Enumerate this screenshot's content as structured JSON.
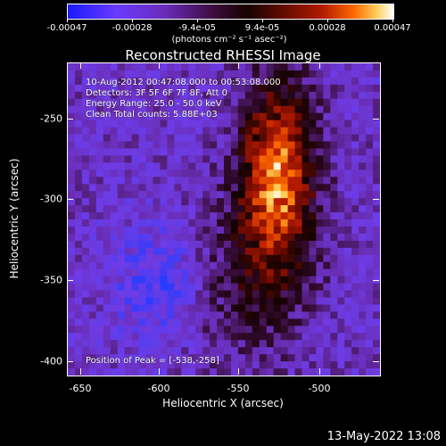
{
  "colorbar": {
    "ticks": [
      "-0.00047",
      "-0.00028",
      "-9.4e-05",
      "9.4e-05",
      "0.00028",
      "0.00047"
    ],
    "unit": "(photons cm⁻² s⁻¹ asec⁻²)"
  },
  "title": "Reconstructed RHESSI Image",
  "info": {
    "time_range": "10-Aug-2012 00:47:08.000 to 00:53:08.000",
    "detectors": "Detectors: 3F 5F 6F 7F 8F, Att 0",
    "energy": "Energy Range: 25.0 - 50.0 keV",
    "algorithm": "Clean     Total counts: 5.88E+03",
    "peak": "Position of Peak = [-538,-258]"
  },
  "axes": {
    "xlabel": "Heliocentric X (arcsec)",
    "ylabel": "Heliocentric Y (arcsec)",
    "xticks": [
      "-650",
      "-600",
      "-550",
      "-500"
    ],
    "yticks": [
      "-250",
      "-300",
      "-350",
      "-400"
    ]
  },
  "timestamp": "13-May-2022 13:08",
  "colors": {
    "background": "#000000",
    "low": "#6a2bb8",
    "high": "#ffffff"
  }
}
